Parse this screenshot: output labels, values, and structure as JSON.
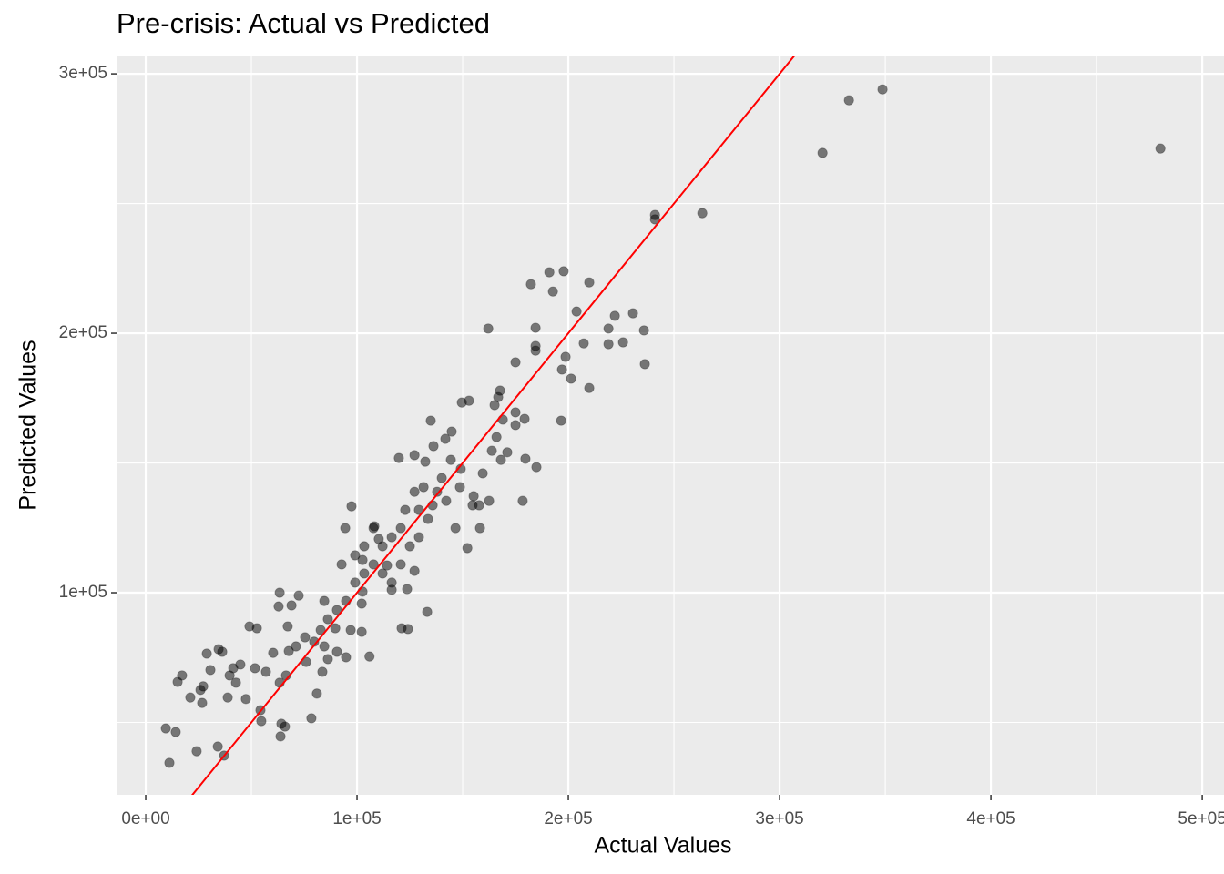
{
  "chart_data": {
    "type": "scatter",
    "title": "Pre-crisis: Actual vs Predicted",
    "x_label": "Actual Values",
    "y_label": "Predicted Values",
    "xlim": [
      -13800,
      510300
    ],
    "ylim": [
      22100,
      306700
    ],
    "xticks": [
      {
        "value": 0,
        "label": "0e+00"
      },
      {
        "value": 100000,
        "label": "1e+05"
      },
      {
        "value": 200000,
        "label": "2e+05"
      },
      {
        "value": 300000,
        "label": "3e+05"
      },
      {
        "value": 400000,
        "label": "4e+05"
      },
      {
        "value": 500000,
        "label": "5e+05"
      }
    ],
    "yticks": [
      {
        "value": 100000,
        "label": "1e+05"
      },
      {
        "value": 200000,
        "label": "2e+05"
      },
      {
        "value": 300000,
        "label": "3e+05"
      }
    ],
    "x_minor_grid": [
      50000,
      150000,
      250000,
      350000,
      450000
    ],
    "y_minor_grid": [
      50000,
      150000,
      250000
    ],
    "grid": true,
    "color": "#000000",
    "opacity": 0.5,
    "reference_line": {
      "slope": 1,
      "intercept": 0,
      "color": "#ff0000"
    },
    "x": [
      480200,
      348700,
      332800,
      320300,
      263400,
      241000,
      241000,
      236200,
      235800,
      230600,
      225900,
      222000,
      219000,
      219000,
      209900,
      209900,
      207300,
      203900,
      201300,
      198700,
      197800,
      197000,
      196600,
      191000,
      192700,
      182300,
      184500,
      184500,
      184500,
      184900,
      179700,
      178400,
      179300,
      175000,
      175000,
      175000,
      171100,
      167700,
      166800,
      165100,
      162100,
      169000,
      168100,
      162500,
      158200,
      152200,
      153000,
      149600,
      154700,
      157800,
      149100,
      144800,
      141800,
      134900,
      136200,
      132300,
      127200,
      119800,
      123700,
      124100,
      121100,
      133200,
      127200,
      116400,
      114200,
      108200,
      110300,
      97400,
      94400,
      102600,
      102600,
      102200,
      105900,
      102200,
      97000,
      94800,
      90500,
      89700,
      84500,
      82800,
      84500,
      83600,
      86200,
      81000,
      78400,
      75900,
      72400,
      69000,
      67200,
      67700,
      66400,
      63400,
      64200,
      65900,
      63800,
      60300,
      63400,
      62900,
      56900,
      54300,
      54700,
      51700,
      52600,
      49100,
      47400,
      44800,
      42700,
      39700,
      41400,
      38800,
      36200,
      34500,
      34100,
      37100,
      28900,
      30600,
      26700,
      25900,
      24100,
      21100,
      17200,
      15100,
      11200,
      14200,
      9500,
      27200,
      116400,
      112100,
      107800,
      120700,
      125000,
      129300,
      133600,
      137900,
      142200,
      146600,
      129300,
      120700,
      116400,
      112100,
      103400,
      99100,
      94800,
      90500,
      86200,
      79700,
      75400,
      71100,
      103400,
      107800,
      99100,
      92700,
      140100,
      144400,
      127200,
      122800,
      148700,
      131500,
      135800,
      155200,
      159500,
      163800,
      166000
    ],
    "values": [
      271200,
      294000,
      289800,
      269500,
      246300,
      245600,
      243900,
      188100,
      201100,
      207700,
      196500,
      206700,
      201800,
      195800,
      219600,
      178900,
      196100,
      208400,
      182500,
      190900,
      223900,
      186000,
      166300,
      223500,
      216100,
      218900,
      202100,
      195100,
      193300,
      148400,
      151600,
      135400,
      167000,
      169500,
      188800,
      164600,
      154100,
      177900,
      175400,
      172300,
      201800,
      166700,
      151200,
      135400,
      124900,
      117200,
      174000,
      173300,
      133700,
      133700,
      147700,
      162100,
      159300,
      166300,
      156500,
      150500,
      153000,
      151900,
      101400,
      86000,
      86300,
      92600,
      108400,
      103900,
      110500,
      125600,
      120700,
      133300,
      124900,
      112600,
      100400,
      95800,
      75400,
      84900,
      85600,
      75100,
      77200,
      86300,
      96800,
      85600,
      79300,
      69500,
      74400,
      61100,
      51600,
      73300,
      98900,
      95100,
      87000,
      77500,
      68100,
      65300,
      49500,
      48400,
      44600,
      76800,
      100000,
      94700,
      69500,
      54700,
      50500,
      70900,
      86300,
      87000,
      59000,
      72300,
      65300,
      68100,
      70900,
      59600,
      77200,
      78200,
      40700,
      37200,
      76500,
      70200,
      57500,
      62500,
      38900,
      59600,
      68100,
      65600,
      34400,
      46300,
      47700,
      63900,
      101100,
      117900,
      110900,
      110900,
      117900,
      131900,
      128400,
      138900,
      135400,
      124900,
      121400,
      124900,
      121400,
      107400,
      107400,
      103900,
      96800,
      93300,
      89800,
      81100,
      82800,
      79300,
      117900,
      124900,
      114400,
      110900,
      144200,
      151200,
      138900,
      131900,
      140700,
      140700,
      133700,
      137200,
      146000,
      154700,
      160000
    ]
  }
}
